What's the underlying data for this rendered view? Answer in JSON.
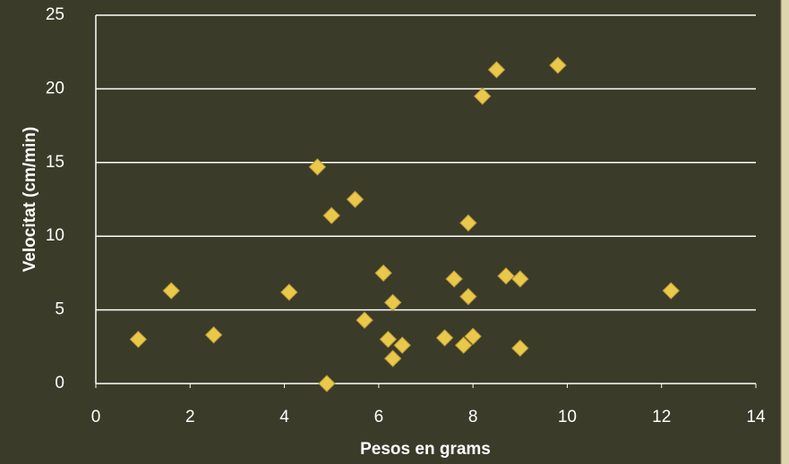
{
  "chart_data": {
    "type": "scatter",
    "x_label": "Pesos en grams",
    "y_label": "Velocitat (cm/min)",
    "x": [
      0.9,
      1.6,
      2.5,
      4.1,
      4.7,
      4.9,
      5.0,
      5.5,
      5.7,
      6.1,
      6.2,
      6.3,
      6.3,
      6.5,
      7.4,
      7.6,
      7.8,
      7.9,
      7.9,
      8.0,
      8.2,
      8.5,
      8.7,
      9.0,
      9.0,
      9.8,
      12.2
    ],
    "values": [
      3.0,
      6.3,
      3.3,
      6.2,
      14.7,
      0,
      11.4,
      12.5,
      4.3,
      7.5,
      3.0,
      5.5,
      1.7,
      2.6,
      3.1,
      7.1,
      2.6,
      5.9,
      10.9,
      3.2,
      19.5,
      21.3,
      7.3,
      7.1,
      2.4,
      21.6,
      6.3
    ],
    "color": "#e9c84a",
    "xlim": [
      0,
      14
    ],
    "xticks": [
      0,
      2,
      4,
      6,
      8,
      10,
      12,
      14
    ],
    "ylim": [
      0,
      25
    ],
    "yticks": [
      0,
      5,
      10,
      15,
      20,
      25
    ],
    "grid": true
  }
}
